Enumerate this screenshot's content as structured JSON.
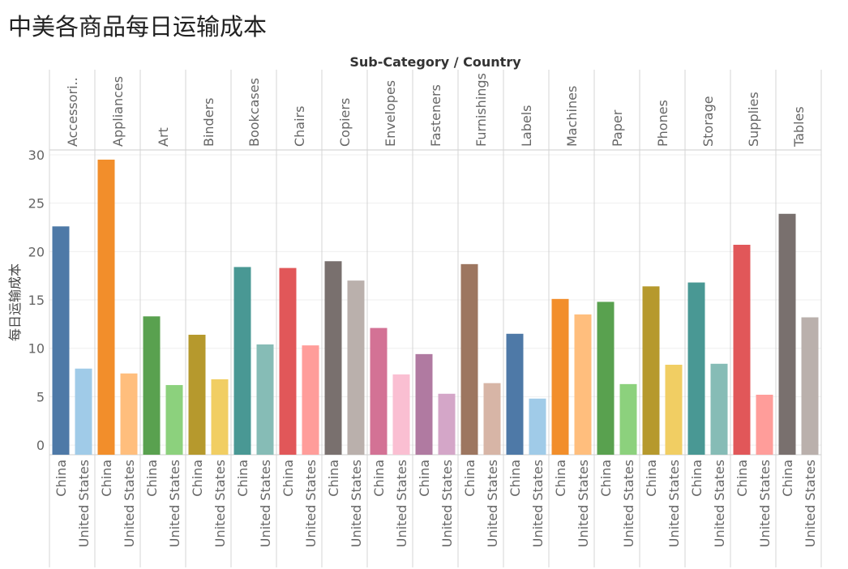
{
  "title": "中美各商品每日运输成本",
  "chart_data": {
    "type": "bar",
    "header": "Sub-Category / Country",
    "ylabel": "每日运输成本",
    "ylim": [
      -1,
      30.5
    ],
    "yticks": [
      0,
      5,
      10,
      15,
      20,
      25,
      30
    ],
    "countries": [
      "China",
      "United States"
    ],
    "categories": [
      {
        "label": "Accessori..",
        "values": [
          22.6,
          7.9
        ],
        "colors": [
          "#4e79a7",
          "#a0cbe8"
        ]
      },
      {
        "label": "Appliances",
        "values": [
          29.5,
          7.4
        ],
        "colors": [
          "#f28e2b",
          "#ffbe7d"
        ]
      },
      {
        "label": "Art",
        "values": [
          13.3,
          6.2
        ],
        "colors": [
          "#59a14f",
          "#8cd17d"
        ]
      },
      {
        "label": "Binders",
        "values": [
          11.4,
          6.8
        ],
        "colors": [
          "#b6992d",
          "#f1ce63"
        ]
      },
      {
        "label": "Bookcases",
        "values": [
          18.4,
          10.4
        ],
        "colors": [
          "#499894",
          "#86bcb6"
        ]
      },
      {
        "label": "Chairs",
        "values": [
          18.3,
          10.3
        ],
        "colors": [
          "#e15759",
          "#ff9d9a"
        ]
      },
      {
        "label": "Copiers",
        "values": [
          19.0,
          17.0
        ],
        "colors": [
          "#79706e",
          "#bab0ac"
        ]
      },
      {
        "label": "Envelopes",
        "values": [
          12.1,
          7.3
        ],
        "colors": [
          "#d37295",
          "#fabfd2"
        ]
      },
      {
        "label": "Fasteners",
        "values": [
          9.4,
          5.3
        ],
        "colors": [
          "#b07aa1",
          "#d4a6c8"
        ]
      },
      {
        "label": "Furnishings",
        "values": [
          18.7,
          6.4
        ],
        "colors": [
          "#9d7660",
          "#d7b5a6"
        ]
      },
      {
        "label": "Labels",
        "values": [
          11.5,
          4.8
        ],
        "colors": [
          "#4e79a7",
          "#a0cbe8"
        ]
      },
      {
        "label": "Machines",
        "values": [
          15.1,
          13.5
        ],
        "colors": [
          "#f28e2b",
          "#ffbe7d"
        ]
      },
      {
        "label": "Paper",
        "values": [
          14.8,
          6.3
        ],
        "colors": [
          "#59a14f",
          "#8cd17d"
        ]
      },
      {
        "label": "Phones",
        "values": [
          16.4,
          8.3
        ],
        "colors": [
          "#b6992d",
          "#f1ce63"
        ]
      },
      {
        "label": "Storage",
        "values": [
          16.8,
          8.4
        ],
        "colors": [
          "#499894",
          "#86bcb6"
        ]
      },
      {
        "label": "Supplies",
        "values": [
          20.7,
          5.2
        ],
        "colors": [
          "#e15759",
          "#ff9d9a"
        ]
      },
      {
        "label": "Tables",
        "values": [
          23.9,
          13.2
        ],
        "colors": [
          "#79706e",
          "#bab0ac"
        ]
      }
    ],
    "grid": true,
    "legend": "none"
  }
}
